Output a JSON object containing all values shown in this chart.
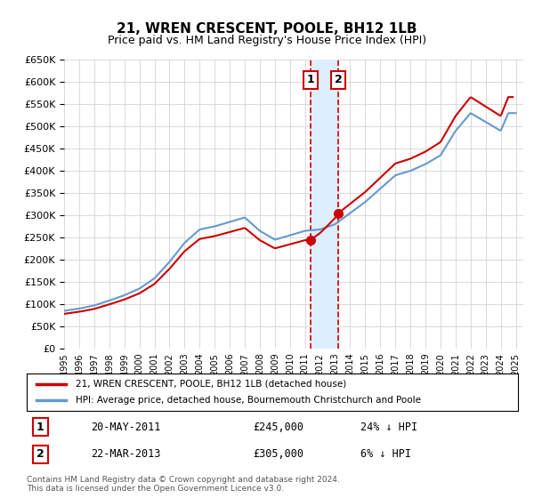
{
  "title": "21, WREN CRESCENT, POOLE, BH12 1LB",
  "subtitle": "Price paid vs. HM Land Registry's House Price Index (HPI)",
  "legend_line1": "21, WREN CRESCENT, POOLE, BH12 1LB (detached house)",
  "legend_line2": "HPI: Average price, detached house, Bournemouth Christchurch and Poole",
  "sale1_date": "2011-05-20",
  "sale1_label": "20-MAY-2011",
  "sale1_price": 245000,
  "sale1_hpi_text": "24% ↓ HPI",
  "sale2_date": "2013-03-22",
  "sale2_label": "22-MAR-2013",
  "sale2_price": 305000,
  "sale2_hpi_text": "6% ↓ HPI",
  "ylim": [
    0,
    650000
  ],
  "yticks": [
    0,
    50000,
    100000,
    150000,
    200000,
    250000,
    300000,
    350000,
    400000,
    450000,
    500000,
    550000,
    600000,
    650000
  ],
  "hpi_color": "#6699cc",
  "price_color": "#cc0000",
  "vline_color": "#cc0000",
  "shade_color": "#ddeeff",
  "footer": "Contains HM Land Registry data © Crown copyright and database right 2024.\nThis data is licensed under the Open Government Licence v3.0.",
  "background_color": "#ffffff",
  "grid_color": "#cccccc"
}
